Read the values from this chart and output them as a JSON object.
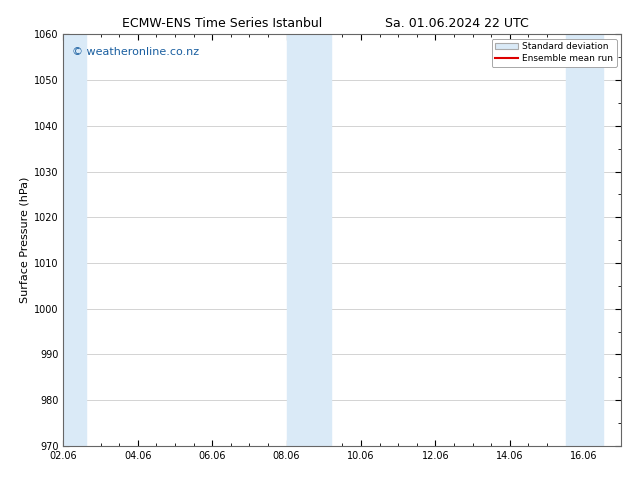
{
  "title_left": "ECMW-ENS Time Series Istanbul",
  "title_right": "Sa. 01.06.2024 22 UTC",
  "ylabel": "Surface Pressure (hPa)",
  "ylim": [
    970,
    1060
  ],
  "yticks": [
    970,
    980,
    990,
    1000,
    1010,
    1020,
    1030,
    1040,
    1050,
    1060
  ],
  "xlim": [
    0,
    15
  ],
  "xtick_labels": [
    "02.06",
    "04.06",
    "06.06",
    "08.06",
    "10.06",
    "12.06",
    "14.06",
    "16.06"
  ],
  "xtick_positions": [
    0,
    2,
    4,
    6,
    8,
    10,
    12,
    14
  ],
  "watermark": "© weatheronline.co.nz",
  "watermark_color": "#1a5fa0",
  "background_color": "#ffffff",
  "shaded_band_color": "#daeaf7",
  "shaded_bands": [
    {
      "x_start": 0.0,
      "x_end": 0.6
    },
    {
      "x_start": 6.0,
      "x_end": 7.2
    },
    {
      "x_start": 13.5,
      "x_end": 14.5
    }
  ],
  "legend_std_label": "Standard deviation",
  "legend_mean_label": "Ensemble mean run",
  "legend_mean_color": "#dd0000",
  "legend_std_facecolor": "#daeaf7",
  "legend_std_edgecolor": "#aaaaaa",
  "title_fontsize": 9,
  "tick_fontsize": 7,
  "ylabel_fontsize": 8,
  "watermark_fontsize": 8,
  "grid_color": "#cccccc",
  "grid_linewidth": 0.6,
  "spine_color": "#666666",
  "minor_tick_count": 3
}
